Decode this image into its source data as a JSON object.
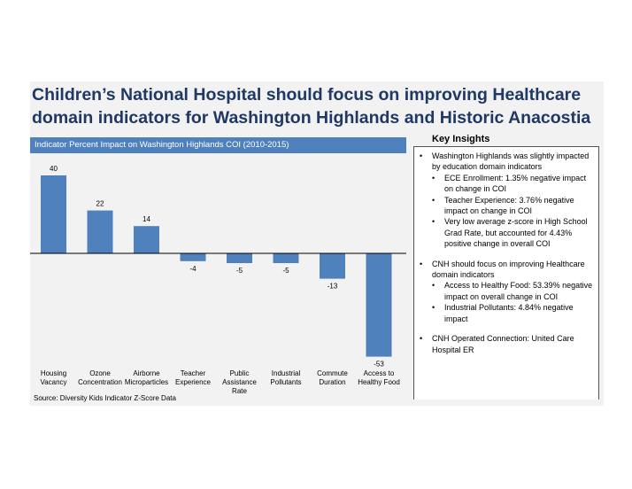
{
  "headline": {
    "line1": "Children’s National Hospital should focus on improving Healthcare",
    "line2": "domain indicators for Washington Highlands and Historic Anacostia"
  },
  "chart_header": "Indicator Percent Impact on Washington Highlands COI (2010-2015)",
  "source": "Source: Diversity Kids Indicator Z-Score Data",
  "colors": {
    "bar": "#4f81bd",
    "header": "#4f81bd",
    "title": "#1f3864",
    "panel": "#f2f2f2"
  },
  "chart_data": {
    "type": "bar",
    "categories": [
      [
        "Housing",
        "Vacancy"
      ],
      [
        "Ozone",
        "Concentration"
      ],
      [
        "Airborne",
        "Microparticles"
      ],
      [
        "Teacher",
        "Experience"
      ],
      [
        "Public",
        "Assistance",
        "Rate"
      ],
      [
        "Industrial",
        "Pollutants"
      ],
      [
        "Commute",
        "Duration"
      ],
      [
        "Access to",
        "Healthy Food"
      ]
    ],
    "values": [
      40,
      22,
      14,
      -4,
      -5,
      -5,
      -13,
      -53
    ],
    "labels": [
      "40",
      "22",
      "14",
      "-4",
      "-5",
      "-5",
      "-13",
      "-53"
    ],
    "title": "Indicator Percent Impact on Washington Highlands COI (2010-2015)",
    "xlabel": "",
    "ylabel": "",
    "ylim": [
      -53,
      40
    ],
    "grid": false,
    "legend": "none"
  },
  "insights": {
    "title": "Key Insights",
    "b1": "Washington Highlands was slightly impacted by education domain indicators",
    "b1_sub": [
      "ECE Enrollment: 1.35% negative impact on change in COI",
      "Teacher Experience: 3.76% negative impact on change in COI",
      "Very low average z-score in High School Grad Rate, but accounted for 4.43% positive change in overall COI"
    ],
    "b2": "CNH should focus on improving Healthcare domain indicators",
    "b2_sub": [
      "Access to Healthy Food: 53.39% negative impact on overall change in COI",
      "Industrial Pollutants: 4.84% negative impact"
    ],
    "b3": "CNH Operated Connection: United Care Hospital ER"
  }
}
